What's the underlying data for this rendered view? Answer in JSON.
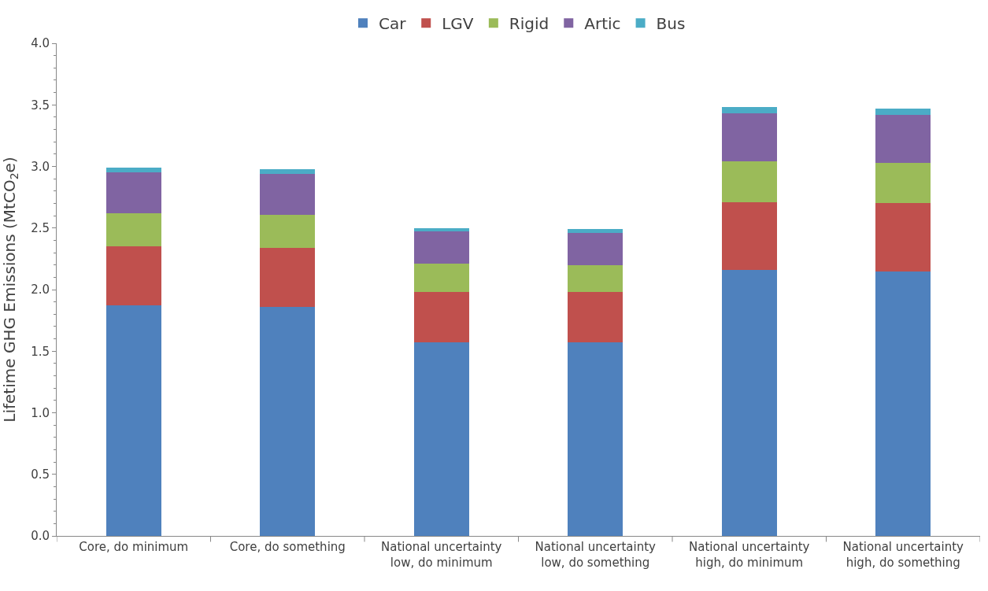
{
  "chart_data": {
    "type": "bar",
    "stacked": true,
    "ylabel": "Lifetime GHG Emissions (MtCO$_{2}$e)",
    "categories": [
      "Core, do minimum",
      "Core, do something",
      "National uncertainty low, do minimum",
      "National uncertainty low, do something",
      "National uncertainty high, do minimum",
      "National uncertainty high, do something"
    ],
    "series": [
      {
        "name": "Car",
        "color": "#4f81bd",
        "values": [
          1.87,
          1.86,
          1.57,
          1.57,
          2.16,
          2.15
        ]
      },
      {
        "name": "LGV",
        "color": "#c0504d",
        "values": [
          0.48,
          0.48,
          0.41,
          0.41,
          0.55,
          0.55
        ]
      },
      {
        "name": "Rigid",
        "color": "#9bbb59",
        "values": [
          0.27,
          0.27,
          0.23,
          0.22,
          0.33,
          0.33
        ]
      },
      {
        "name": "Artic",
        "color": "#8064a2",
        "values": [
          0.33,
          0.33,
          0.26,
          0.26,
          0.39,
          0.39
        ]
      },
      {
        "name": "Bus",
        "color": "#4bacc6",
        "values": [
          0.04,
          0.04,
          0.03,
          0.03,
          0.05,
          0.05
        ]
      }
    ],
    "ylim": [
      0,
      4
    ],
    "yticks": [
      {
        "value": 0,
        "label": "0.0"
      },
      {
        "value": 0.5,
        "label": "0.5"
      },
      {
        "value": 1,
        "label": "1.0"
      },
      {
        "value": 1.5,
        "label": "1.5"
      },
      {
        "value": 2,
        "label": "2.0"
      },
      {
        "value": 2.5,
        "label": "2.5"
      },
      {
        "value": 3,
        "label": "3.0"
      },
      {
        "value": 3.5,
        "label": "3.5"
      },
      {
        "value": 4,
        "label": "4.0"
      }
    ],
    "legend": "top"
  }
}
